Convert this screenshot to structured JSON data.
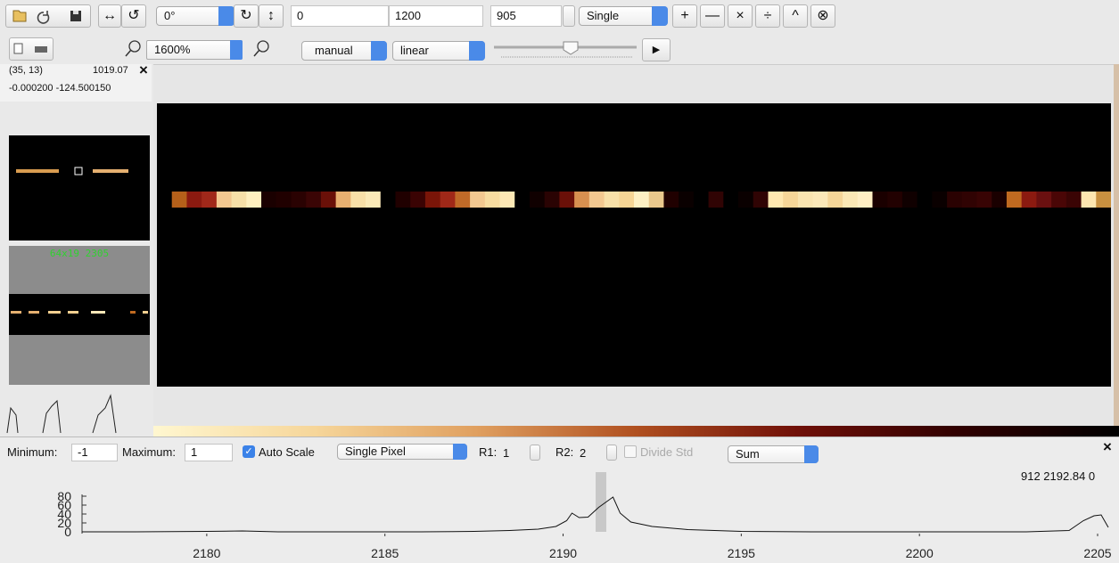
{
  "toolbar": {
    "glyphs": [
      "↔",
      "↺",
      "↻",
      "↕"
    ],
    "rotation": "0°",
    "min": "0",
    "max": "1200",
    "frame": "905",
    "frame_mode": "Single",
    "ops": [
      "+",
      "—",
      "×",
      "÷",
      "^",
      "⊗"
    ],
    "zoom": "1600%",
    "scale_mode": "manual",
    "scale_type": "linear",
    "play": "▶"
  },
  "info": {
    "coords": "(35, 13)",
    "value": "1019.07",
    "close": "×",
    "world": "-0.000200 -124.500150"
  },
  "thumbnail_label": "64x19 2305",
  "spectrum": {
    "minimum_label": "Minimum:",
    "minimum": "-1",
    "maximum_label": "Maximum:",
    "maximum": "1",
    "auto_scale": "Auto Scale",
    "mode": "Single Pixel",
    "r1_label": "R1:",
    "r1": "1",
    "r2_label": "R2:",
    "r2": "2",
    "divide_std": "Divide Std",
    "combine": "Sum",
    "close": "×",
    "readout": "912 2192.84 0"
  },
  "plot": {
    "xlim": [
      2176.5,
      2205.3
    ],
    "ylim": [
      -4,
      84
    ],
    "xticks": [
      2180,
      2185,
      2190,
      2195,
      2200,
      2205
    ],
    "yticks": [
      0,
      20,
      40,
      60,
      80
    ],
    "x": [
      2176.5,
      2178,
      2180,
      2181,
      2182,
      2184,
      2186,
      2187.5,
      2188.5,
      2189.3,
      2189.8,
      2190.1,
      2190.25,
      2190.45,
      2190.7,
      2191.0,
      2191.4,
      2191.6,
      2191.9,
      2192.5,
      2193.5,
      2195,
      2197,
      2200,
      2203,
      2204.2,
      2204.6,
      2204.9,
      2205.1,
      2205.3
    ],
    "values": [
      0,
      0,
      1,
      2,
      0,
      0,
      0,
      1,
      3,
      6,
      12,
      25,
      42,
      32,
      33,
      55,
      78,
      42,
      22,
      12,
      5,
      1,
      0,
      0,
      0,
      3,
      25,
      36,
      38,
      10
    ]
  }
}
